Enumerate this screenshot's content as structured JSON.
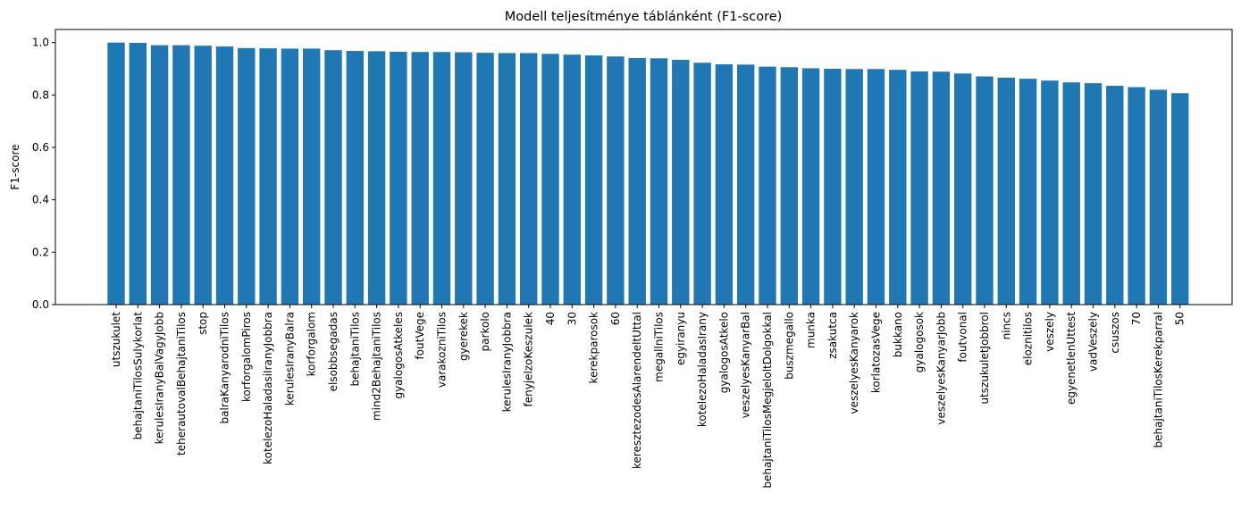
{
  "chart_data": {
    "type": "bar",
    "title": "Modell teljesítménye táblánként (F1-score)",
    "xlabel": "",
    "ylabel": "F1-score",
    "ylim": [
      0,
      1.05
    ],
    "yticks": [
      "0.0",
      "0.2",
      "0.4",
      "0.6",
      "0.8",
      "1.0"
    ],
    "bar_color": "#1f77b4",
    "grid": false,
    "categories": [
      "utszukulet",
      "behajtaniTilosSulykorlat",
      "kerulesIranyBalVagyJobb",
      "teherautovalBehajtaniTilos",
      "stop",
      "balraKanyarodniTilos",
      "korforgalomPiros",
      "kotelezoHaladasiIranyJobbra",
      "kerulesIranyBalra",
      "korforgalom",
      "elsobbsegadas",
      "behajtaniTilos",
      "mind2BehajtaniTilos",
      "gyalogosAtkeles",
      "foutVege",
      "varakozniTilos",
      "gyerekek",
      "parkolo",
      "kerulesIranyJobbra",
      "fenyjelzoKeszulek",
      "40",
      "30",
      "kerekparosok",
      "60",
      "keresztezodesAlarendeltUttal",
      "megallniTilos",
      "egyiranyu",
      "kotelezoHaladasIrany",
      "gyalogosAtkelo",
      "veszelyesKanyarBal",
      "behajtaniTilosMegjeloltDolgokkal",
      "buszmegallo",
      "munka",
      "zsakutca",
      "veszelyesKanyarok",
      "korlatozasVege",
      "bukkano",
      "gyalogosok",
      "veszelyesKanyarJobb",
      "foutvonal",
      "utszukuletJobbrol",
      "nincs",
      "eloznitilos",
      "veszely",
      "egyenetlenUttest",
      "vadVeszely",
      "csuszos",
      "70",
      "behajtaniTilosKerekparral",
      "50"
    ],
    "values": [
      1.0,
      0.999,
      0.99,
      0.99,
      0.988,
      0.985,
      0.979,
      0.978,
      0.977,
      0.977,
      0.971,
      0.968,
      0.967,
      0.965,
      0.964,
      0.964,
      0.963,
      0.961,
      0.96,
      0.96,
      0.957,
      0.954,
      0.951,
      0.947,
      0.941,
      0.94,
      0.934,
      0.923,
      0.917,
      0.916,
      0.908,
      0.906,
      0.902,
      0.9,
      0.899,
      0.899,
      0.896,
      0.89,
      0.889,
      0.882,
      0.871,
      0.866,
      0.862,
      0.855,
      0.848,
      0.845,
      0.835,
      0.83,
      0.82,
      0.807
    ]
  }
}
